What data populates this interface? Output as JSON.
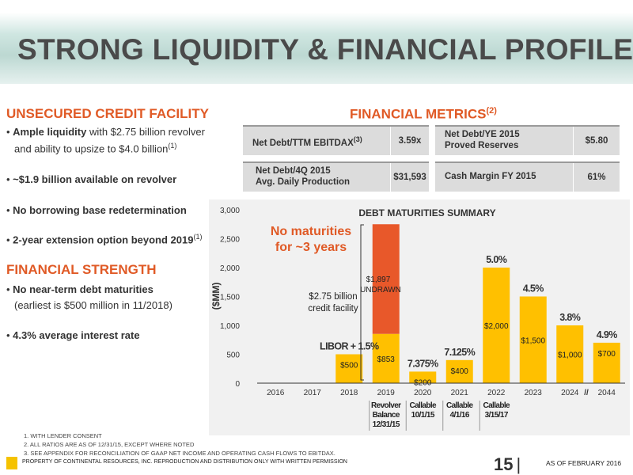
{
  "slide": {
    "title": "STRONG LIQUIDITY & FINANCIAL PROFILE",
    "page_number": "15",
    "as_of": "AS OF FEBRUARY 2016",
    "footer": "PROPERTY OF CONTINENTAL RESOURCES, INC. REPRODUCTION AND DISTRIBUTION ONLY WITH WRITTEN PERMISSION",
    "footnotes": [
      "1. WITH LENDER CONSENT",
      "2. ALL RATIOS ARE AS OF 12/31/15, EXCEPT WHERE NOTED",
      "3. SEE APPENDIX FOR RECONCILIATION OF GAAP NET INCOME AND OPERATING CASH FLOWS TO EBITDAX."
    ]
  },
  "credit": {
    "heading": "UNSECURED CREDIT FACILITY",
    "b1_bold": "Ample liquidity",
    "b1_rest": " with $2.75 billion revolver",
    "b1_line2": "and ability to upsize to $4.0 billion",
    "b1_sup": "(1)",
    "b2": "~$1.9 billion available on revolver",
    "b3": "No borrowing base redetermination",
    "b4": "2-year extension option beyond 2019",
    "b4_sup": "(1)"
  },
  "strength": {
    "heading": "FINANCIAL STRENGTH",
    "b1": "No near-term debt maturities",
    "b1_line2": "(earliest is $500 million in 11/2018)",
    "b2": "4.3% average interest rate"
  },
  "metrics": {
    "heading": "FINANCIAL METRICS",
    "heading_sup": "(2)",
    "r1c1_label": "Net Debt/TTM EBITDAX",
    "r1c1_sup": "(3)",
    "r1c1_value": "3.59x",
    "r1c2_label1": "Net Debt/YE 2015",
    "r1c2_label2": "Proved Reserves",
    "r1c2_value": "$5.80",
    "r2c1_label1": "Net Debt/4Q 2015",
    "r2c1_label2": "Avg. Daily Production",
    "r2c1_value": "$31,593",
    "r2c2_label": "Cash Margin FY 2015",
    "r2c2_value": "61%"
  },
  "chart_data": {
    "type": "bar",
    "title": "DEBT MATURITIES SUMMARY",
    "ylabel": "($MM)",
    "ylim": [
      0,
      3000
    ],
    "yticks": [
      "0",
      "500",
      "1,000",
      "1,500",
      "2,000",
      "2,500",
      "3,000"
    ],
    "categories": [
      "2016",
      "2017",
      "2018",
      "2019",
      "2020",
      "2021",
      "2022",
      "2023",
      "2024",
      "2044"
    ],
    "series": [
      {
        "name": "",
        "color": "#ffc000",
        "values": [
          0,
          0,
          500,
          853,
          200,
          400,
          2000,
          1500,
          1000,
          700
        ]
      },
      {
        "name": "",
        "color": "#e8582a",
        "values": [
          0,
          0,
          0,
          1897,
          0,
          0,
          0,
          0,
          0,
          0
        ]
      }
    ],
    "bar_labels": [
      "",
      "",
      "$500",
      "$853",
      "$200",
      "$400",
      "$2,000",
      "$1,500",
      "$1,000",
      "$700"
    ],
    "undrawn_label1": "$1,897",
    "undrawn_label2": "UNDRAWN",
    "rate_labels": [
      "",
      "",
      "LIBOR + 1.5%",
      "",
      "7.375%",
      "7.125%",
      "5.0%",
      "4.5%",
      "3.8%",
      "4.9%"
    ],
    "no_maturities_line1": "No maturities",
    "no_maturities_line2": "for ~3 years",
    "facility_line1": "$2.75 billion",
    "facility_line2": "credit facility",
    "axis_break": "//",
    "callable_notes": [
      {
        "category": "2019",
        "lines": [
          "Revolver",
          "Balance",
          "12/31/15"
        ]
      },
      {
        "category": "2020",
        "lines": [
          "Callable",
          "10/1/15"
        ]
      },
      {
        "category": "2021",
        "lines": [
          "Callable",
          "4/1/16"
        ]
      },
      {
        "category": "2022",
        "lines": [
          "Callable",
          "3/15/17"
        ]
      }
    ]
  }
}
